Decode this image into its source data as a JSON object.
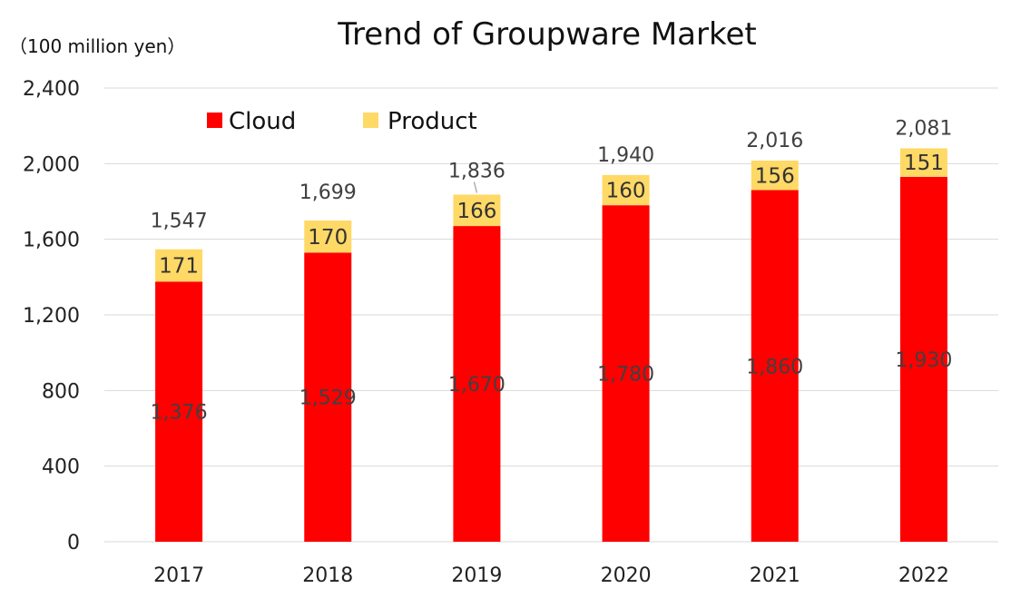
{
  "chart_data": {
    "type": "bar",
    "stacked": true,
    "title": "Trend of Groupware Market",
    "unit_label": "（100 million yen）",
    "categories": [
      "2017",
      "2018",
      "2019",
      "2020",
      "2021",
      "2022"
    ],
    "series": [
      {
        "name": "Cloud",
        "color": "#ff0000",
        "values": [
          1376,
          1529,
          1670,
          1780,
          1860,
          1930
        ]
      },
      {
        "name": "Product",
        "color": "#ffd966",
        "values": [
          171,
          170,
          166,
          160,
          156,
          151
        ]
      }
    ],
    "totals": [
      1547,
      1699,
      1836,
      1940,
      2016,
      2081
    ],
    "value_labels": {
      "cloud": [
        "1,376",
        "1,529",
        "1,670",
        "1,780",
        "1,860",
        "1,930"
      ],
      "product": [
        "171",
        "170",
        "166",
        "160",
        "156",
        "151"
      ],
      "totals": [
        "1,547",
        "1,699",
        "1,836",
        "1,940",
        "2,016",
        "2,081"
      ]
    },
    "ylim": [
      0,
      2400
    ],
    "yticks": [
      0,
      400,
      800,
      1200,
      1600,
      2000,
      2400
    ],
    "ytick_labels": [
      "0",
      "400",
      "800",
      "1,200",
      "1,600",
      "2,000",
      "2,400"
    ],
    "grid": true,
    "legend_position": "top-left"
  }
}
